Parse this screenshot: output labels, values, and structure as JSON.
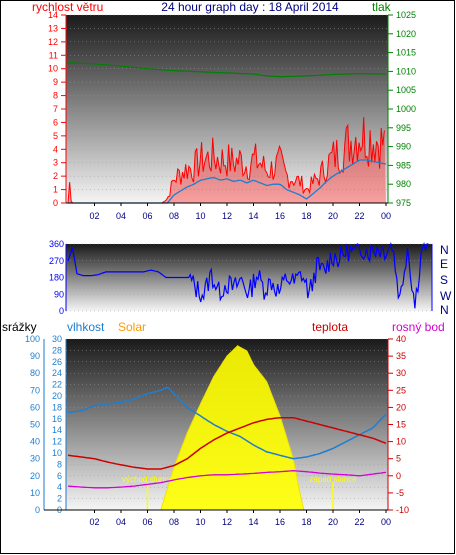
{
  "header": {
    "title": "24 hour graph day : 18 April 2014",
    "left_label": "rychlost větru",
    "right_label": "tlak"
  },
  "colors": {
    "wind": "#ff0000",
    "wind_avg": "#1e7ed0",
    "pressure": "#008000",
    "direction": "#0000ff",
    "humidity": "#1e7ed0",
    "temperature": "#cc0000",
    "dewpoint": "#d400d4",
    "solar": "#ffff00",
    "rain": "#1e7ed0",
    "title": "#000080"
  },
  "panel3": {
    "rain_label": "srážky",
    "humidity_label": "vlhkost",
    "solar_label": "Solar",
    "temp_label": "teplota",
    "dew_label": "rosný bod",
    "sunrise_label": "východ slunce",
    "sunset_label": "západ slunce"
  },
  "chart_data": [
    {
      "type": "line",
      "x_ticks": [
        "02",
        "04",
        "06",
        "08",
        "10",
        "12",
        "14",
        "16",
        "18",
        "20",
        "22",
        "00"
      ],
      "left_axis": {
        "label": "rychlost větru",
        "ylim": [
          0,
          14
        ],
        "ticks": [
          "0",
          "1",
          "2",
          "3",
          "4",
          "5",
          "6",
          "7",
          "8",
          "9",
          "10",
          "11",
          "12",
          "13",
          "14"
        ]
      },
      "right_axis": {
        "label": "tlak",
        "ylim": [
          975,
          1025
        ],
        "ticks": [
          "975",
          "980",
          "985",
          "990",
          "995",
          "1000",
          "1005",
          "1010",
          "1015",
          "1020",
          "1025"
        ]
      },
      "wind_gust_profile": [
        [
          0.0,
          0
        ],
        [
          0.1,
          1.8
        ],
        [
          0.25,
          0
        ],
        [
          0.5,
          0
        ],
        [
          1,
          0
        ],
        [
          2,
          0
        ],
        [
          3,
          0
        ],
        [
          4,
          0
        ],
        [
          5,
          0
        ],
        [
          6,
          0
        ],
        [
          7,
          0
        ],
        [
          7.5,
          0.3
        ],
        [
          8,
          1.8
        ],
        [
          8.5,
          2.2
        ],
        [
          9,
          2.6
        ],
        [
          9.5,
          2.6
        ],
        [
          10,
          3.2
        ],
        [
          10.5,
          3.3
        ],
        [
          11,
          3.4
        ],
        [
          11.5,
          3.2
        ],
        [
          12,
          3.2
        ],
        [
          12.5,
          3.0
        ],
        [
          13,
          3.2
        ],
        [
          13.5,
          2.8
        ],
        [
          14,
          3.2
        ],
        [
          14.5,
          3.0
        ],
        [
          15,
          2.4
        ],
        [
          15.5,
          2.6
        ],
        [
          16,
          3.0
        ],
        [
          16.5,
          2.0
        ],
        [
          17,
          1.8
        ],
        [
          17.5,
          1.6
        ],
        [
          18,
          1.0
        ],
        [
          18.5,
          1.5
        ],
        [
          19,
          2.0
        ],
        [
          19.5,
          2.8
        ],
        [
          20,
          3.4
        ],
        [
          20.5,
          3.8
        ],
        [
          21,
          4.3
        ],
        [
          21.5,
          4.8
        ],
        [
          22,
          5.2
        ],
        [
          22.5,
          5.0
        ],
        [
          23,
          4.8
        ],
        [
          23.5,
          4.6
        ],
        [
          24,
          4.4
        ]
      ],
      "wind_average": [
        [
          0,
          0
        ],
        [
          7.5,
          0
        ],
        [
          8,
          0.6
        ],
        [
          8.5,
          0.9
        ],
        [
          9,
          1.2
        ],
        [
          9.5,
          1.4
        ],
        [
          10,
          1.7
        ],
        [
          10.5,
          1.8
        ],
        [
          11,
          1.9
        ],
        [
          11.5,
          1.7
        ],
        [
          12,
          1.8
        ],
        [
          12.5,
          1.6
        ],
        [
          13,
          1.7
        ],
        [
          13.5,
          1.5
        ],
        [
          14,
          1.7
        ],
        [
          14.5,
          1.5
        ],
        [
          15,
          1.3
        ],
        [
          15.5,
          1.4
        ],
        [
          16,
          1.4
        ],
        [
          16.5,
          1.0
        ],
        [
          17,
          0.8
        ],
        [
          17.5,
          0.6
        ],
        [
          18,
          0.3
        ],
        [
          18.5,
          0.7
        ],
        [
          19,
          1.1
        ],
        [
          19.5,
          1.6
        ],
        [
          20,
          2.0
        ],
        [
          20.5,
          2.3
        ],
        [
          21,
          2.6
        ],
        [
          21.5,
          2.9
        ],
        [
          22,
          3.2
        ],
        [
          22.5,
          3.2
        ],
        [
          23,
          3.1
        ],
        [
          23.5,
          3.0
        ],
        [
          24,
          2.9
        ]
      ],
      "pressure": [
        [
          0,
          1012.3
        ],
        [
          2,
          1012.0
        ],
        [
          4,
          1011.4
        ],
        [
          6,
          1010.7
        ],
        [
          8,
          1010.2
        ],
        [
          10,
          1009.9
        ],
        [
          12,
          1009.6
        ],
        [
          14,
          1009.3
        ],
        [
          15,
          1008.8
        ],
        [
          16,
          1008.6
        ],
        [
          18,
          1008.8
        ],
        [
          20,
          1009.2
        ],
        [
          22,
          1009.4
        ],
        [
          24,
          1009.3
        ]
      ]
    },
    {
      "type": "scatter",
      "x_ticks": [
        "02",
        "04",
        "06",
        "08",
        "10",
        "12",
        "14",
        "16",
        "18",
        "20",
        "22",
        "00"
      ],
      "left_axis": {
        "ylim": [
          0,
          360
        ],
        "ticks": [
          "0",
          "90",
          "180",
          "270",
          "360"
        ]
      },
      "right_axis": {
        "ticks": [
          "N",
          "W",
          "S",
          "E",
          "N"
        ]
      },
      "wind_direction": [
        [
          0,
          270
        ],
        [
          0.3,
          340
        ],
        [
          0.6,
          200
        ],
        [
          1,
          190
        ],
        [
          1.5,
          190
        ],
        [
          2,
          195
        ],
        [
          2.5,
          210
        ],
        [
          3,
          210
        ],
        [
          4,
          210
        ],
        [
          5,
          210
        ],
        [
          5.5,
          220
        ],
        [
          6,
          210
        ],
        [
          6.5,
          180
        ],
        [
          7,
          180
        ],
        [
          7.5,
          180
        ],
        [
          8,
          180
        ],
        [
          8.5,
          120
        ],
        [
          9,
          90
        ],
        [
          9.5,
          200
        ],
        [
          10,
          100
        ],
        [
          10.5,
          150
        ],
        [
          11,
          120
        ],
        [
          11.5,
          170
        ],
        [
          12,
          90
        ],
        [
          12.5,
          200
        ],
        [
          13,
          120
        ],
        [
          13.5,
          160
        ],
        [
          14,
          100
        ],
        [
          14.5,
          180
        ],
        [
          15,
          150
        ],
        [
          15.5,
          200
        ],
        [
          16,
          90
        ],
        [
          16.5,
          240
        ],
        [
          17,
          210
        ],
        [
          17.5,
          300
        ],
        [
          18,
          280
        ],
        [
          18.5,
          330
        ],
        [
          19,
          310
        ],
        [
          19.5,
          340
        ],
        [
          20,
          320
        ],
        [
          20.5,
          340
        ],
        [
          21,
          330
        ],
        [
          21.5,
          360
        ],
        [
          22,
          60
        ],
        [
          22.5,
          350
        ],
        [
          23,
          30
        ],
        [
          23.5,
          360
        ],
        [
          24,
          330
        ]
      ]
    },
    {
      "type": "line",
      "x_ticks": [
        "02",
        "04",
        "06",
        "08",
        "10",
        "12",
        "14",
        "16",
        "18",
        "20",
        "22",
        "00"
      ],
      "rain_axis": {
        "label": "srážky",
        "ylim": [
          0,
          100
        ],
        "ticks": [
          "0",
          "10",
          "20",
          "30",
          "40",
          "50",
          "60",
          "70",
          "80",
          "90",
          "100"
        ]
      },
      "humidity_axis": {
        "label": "vlhkost",
        "ylim": [
          0,
          30
        ],
        "ticks": [
          "0",
          "2",
          "4",
          "6",
          "8",
          "10",
          "12",
          "14",
          "16",
          "18",
          "20",
          "22",
          "24",
          "26",
          "28",
          "30"
        ]
      },
      "temp_axis": {
        "label": "teplota",
        "ylim": [
          -10,
          40
        ],
        "ticks": [
          "-10",
          "-5",
          "0",
          "5",
          "10",
          "15",
          "20",
          "25",
          "30",
          "35",
          "40"
        ]
      },
      "humidity": [
        [
          0,
          57
        ],
        [
          1,
          58
        ],
        [
          2,
          61
        ],
        [
          3,
          62
        ],
        [
          4,
          63
        ],
        [
          5,
          65
        ],
        [
          6,
          68
        ],
        [
          7,
          70
        ],
        [
          7.5,
          72
        ],
        [
          8,
          68
        ],
        [
          9,
          60
        ],
        [
          10,
          55
        ],
        [
          11,
          50
        ],
        [
          12,
          46
        ],
        [
          13,
          43
        ],
        [
          14,
          38
        ],
        [
          15,
          34
        ],
        [
          16,
          32
        ],
        [
          17,
          30
        ],
        [
          18,
          31
        ],
        [
          19,
          33
        ],
        [
          20,
          36
        ],
        [
          21,
          40
        ],
        [
          22,
          44
        ],
        [
          23,
          48
        ],
        [
          24,
          56
        ]
      ],
      "temperature": [
        [
          0,
          6.0
        ],
        [
          1,
          5.5
        ],
        [
          2,
          5.0
        ],
        [
          3,
          4.0
        ],
        [
          4,
          3.2
        ],
        [
          5,
          2.5
        ],
        [
          6,
          2.0
        ],
        [
          7,
          2.0
        ],
        [
          8,
          3.0
        ],
        [
          9,
          5.0
        ],
        [
          10,
          8.0
        ],
        [
          11,
          10.5
        ],
        [
          12,
          12.5
        ],
        [
          13,
          14.0
        ],
        [
          14,
          15.5
        ],
        [
          15,
          16.5
        ],
        [
          16,
          17.0
        ],
        [
          17,
          17.0
        ],
        [
          18,
          16.0
        ],
        [
          19,
          15.0
        ],
        [
          20,
          14.0
        ],
        [
          21,
          13.0
        ],
        [
          22,
          12.0
        ],
        [
          23,
          11.0
        ],
        [
          24,
          9.5
        ]
      ],
      "dewpoint": [
        [
          0,
          -3.0
        ],
        [
          1,
          -3.3
        ],
        [
          2,
          -3.5
        ],
        [
          3,
          -3.5
        ],
        [
          4,
          -3.3
        ],
        [
          5,
          -3.0
        ],
        [
          6,
          -2.5
        ],
        [
          7,
          -2.0
        ],
        [
          8,
          -1.2
        ],
        [
          9,
          -0.5
        ],
        [
          10,
          0.0
        ],
        [
          11,
          0.3
        ],
        [
          12,
          0.3
        ],
        [
          13,
          0.5
        ],
        [
          14,
          0.7
        ],
        [
          15,
          1.0
        ],
        [
          16,
          1.2
        ],
        [
          17,
          1.5
        ],
        [
          18,
          1.2
        ],
        [
          19,
          0.8
        ],
        [
          20,
          0.5
        ],
        [
          21,
          0.3
        ],
        [
          22,
          0.0
        ],
        [
          23,
          0.5
        ],
        [
          24,
          1.0
        ]
      ],
      "solar_fraction": [
        [
          7,
          0
        ],
        [
          8,
          0.25
        ],
        [
          9,
          0.45
        ],
        [
          10,
          0.62
        ],
        [
          11,
          0.78
        ],
        [
          12,
          0.9
        ],
        [
          12.8,
          0.96
        ],
        [
          13.5,
          0.93
        ],
        [
          14,
          0.85
        ],
        [
          15,
          0.75
        ],
        [
          16,
          0.55
        ],
        [
          17,
          0.3
        ],
        [
          17.5,
          0.1
        ],
        [
          17.8,
          0
        ]
      ],
      "sunrise": 6,
      "sunset": 20
    }
  ]
}
